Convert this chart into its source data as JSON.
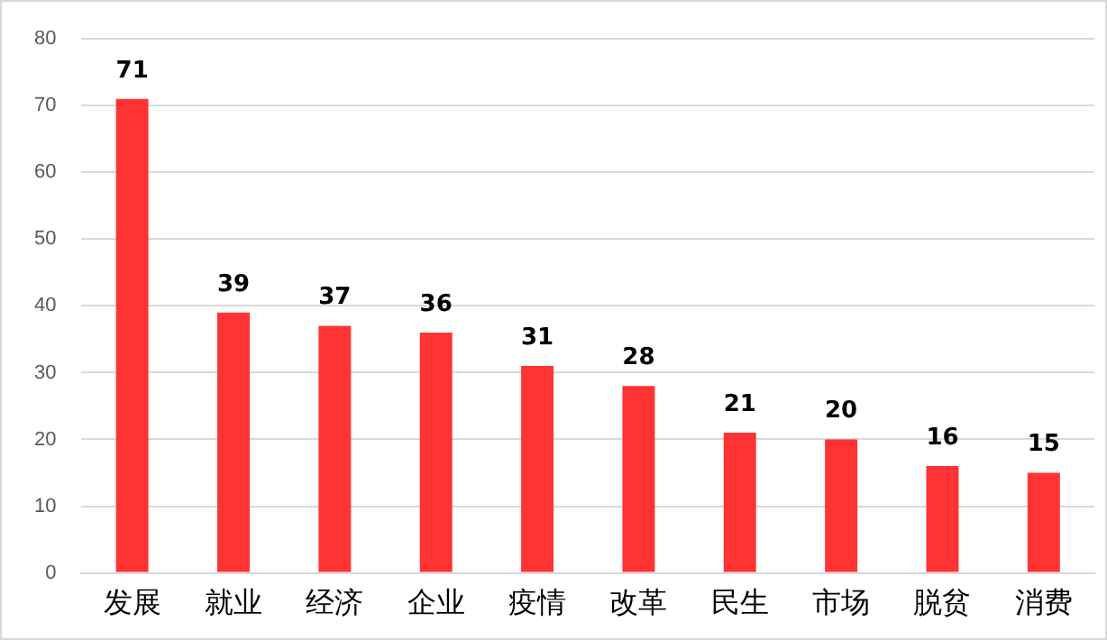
{
  "chart_data": {
    "type": "bar",
    "categories": [
      "发展",
      "就业",
      "经济",
      "企业",
      "疫情",
      "改革",
      "民生",
      "市场",
      "脱贫",
      "消费"
    ],
    "values": [
      71,
      39,
      37,
      36,
      31,
      28,
      21,
      20,
      16,
      15
    ],
    "color": "#ff3333",
    "ylim": [
      0,
      80
    ],
    "yticks": [
      0,
      10,
      20,
      30,
      40,
      50,
      60,
      70,
      80
    ],
    "grid": "y",
    "data_labels": true,
    "legend": false
  }
}
